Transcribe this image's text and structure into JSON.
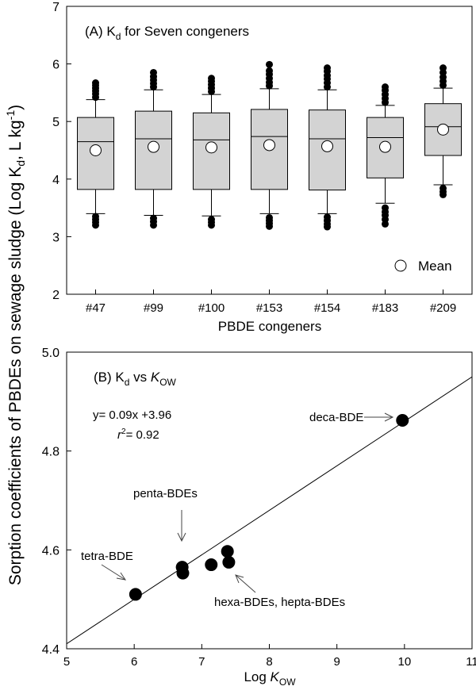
{
  "shared_ylabel": "Sorption coefficients of PBDEs on sewage sludge (Log K",
  "shared_ylabel_sub": "d",
  "shared_ylabel_unit": ", L kg",
  "shared_ylabel_sup": "-1",
  "shared_ylabel_close": ")",
  "chart_data": [
    {
      "type": "box",
      "title_prefix": "(A) K",
      "title_sub": "d",
      "title_suffix": " for Seven congeners",
      "xlabel": "PBDE congeners",
      "ylim": [
        2,
        7
      ],
      "yticks": [
        "2",
        "3",
        "4",
        "5",
        "6",
        "7"
      ],
      "legend": {
        "label": "Mean",
        "position": "bottom-right"
      },
      "categories": [
        "#47",
        "#99",
        "#100",
        "#153",
        "#154",
        "#183",
        "#209"
      ],
      "boxes": [
        {
          "whisker_low": 3.4,
          "q1": 3.82,
          "median": 4.65,
          "q3": 5.07,
          "whisker_high": 5.38,
          "mean": 4.5,
          "outliers": [
            3.2,
            3.25,
            3.3,
            3.35,
            5.42,
            5.48,
            5.53,
            5.58,
            5.63,
            5.67
          ]
        },
        {
          "whisker_low": 3.37,
          "q1": 3.82,
          "median": 4.7,
          "q3": 5.18,
          "whisker_high": 5.55,
          "mean": 4.56,
          "outliers": [
            3.2,
            3.26,
            3.32,
            5.6,
            5.66,
            5.72,
            5.78,
            5.85
          ]
        },
        {
          "whisker_low": 3.36,
          "q1": 3.82,
          "median": 4.68,
          "q3": 5.15,
          "whisker_high": 5.47,
          "mean": 4.55,
          "outliers": [
            3.2,
            3.25,
            3.3,
            5.52,
            5.58,
            5.64,
            5.7,
            5.75
          ]
        },
        {
          "whisker_low": 3.4,
          "q1": 3.82,
          "median": 4.74,
          "q3": 5.21,
          "whisker_high": 5.57,
          "mean": 4.59,
          "outliers": [
            3.18,
            3.23,
            3.28,
            3.33,
            5.62,
            5.68,
            5.75,
            5.82,
            5.88,
            5.99
          ]
        },
        {
          "whisker_low": 3.4,
          "q1": 3.81,
          "median": 4.7,
          "q3": 5.2,
          "whisker_high": 5.55,
          "mean": 4.57,
          "outliers": [
            3.17,
            3.22,
            3.28,
            3.34,
            5.6,
            5.67,
            5.74,
            5.8,
            5.87,
            5.93
          ]
        },
        {
          "whisker_low": 3.58,
          "q1": 4.02,
          "median": 4.72,
          "q3": 5.07,
          "whisker_high": 5.28,
          "mean": 4.56,
          "outliers": [
            3.22,
            3.3,
            3.37,
            3.43,
            3.5,
            5.33,
            5.4,
            5.47,
            5.54,
            5.6
          ]
        },
        {
          "whisker_low": 3.9,
          "q1": 4.41,
          "median": 4.91,
          "q3": 5.31,
          "whisker_high": 5.58,
          "mean": 4.86,
          "outliers": [
            3.73,
            3.78,
            3.84,
            5.63,
            5.7,
            5.77,
            5.85,
            5.93
          ]
        }
      ]
    },
    {
      "type": "scatter",
      "title_prefix": "(B) K",
      "title_sub": "d",
      "title_mid": " vs ",
      "title_italic": "K",
      "title_sub2": "OW",
      "xlabel_prefix": "Log ",
      "xlabel_italic": "K",
      "xlabel_sub": "OW",
      "xlim": [
        5,
        11
      ],
      "ylim": [
        4.4,
        5.0
      ],
      "xticks": [
        "5",
        "6",
        "7",
        "8",
        "9",
        "10",
        "11"
      ],
      "yticks": [
        "4.4",
        "4.6",
        "4.8",
        "5.0"
      ],
      "points": [
        {
          "x": 6.02,
          "y": 4.51
        },
        {
          "x": 6.71,
          "y": 4.565
        },
        {
          "x": 6.72,
          "y": 4.553
        },
        {
          "x": 7.14,
          "y": 4.57
        },
        {
          "x": 7.38,
          "y": 4.597
        },
        {
          "x": 7.4,
          "y": 4.575
        },
        {
          "x": 9.97,
          "y": 4.862
        }
      ],
      "regression": {
        "slope": 0.09,
        "intercept": 3.96
      },
      "equation": "y= 0.09x +3.96",
      "r2_label": "r",
      "r2_sup": "2",
      "r2_value": "= 0.92",
      "annotations": {
        "deca": "deca-BDE",
        "penta": "penta-BDEs",
        "tetra": "tetra-BDE",
        "hexa": "hexa-BDEs, hepta-BDEs"
      }
    }
  ]
}
